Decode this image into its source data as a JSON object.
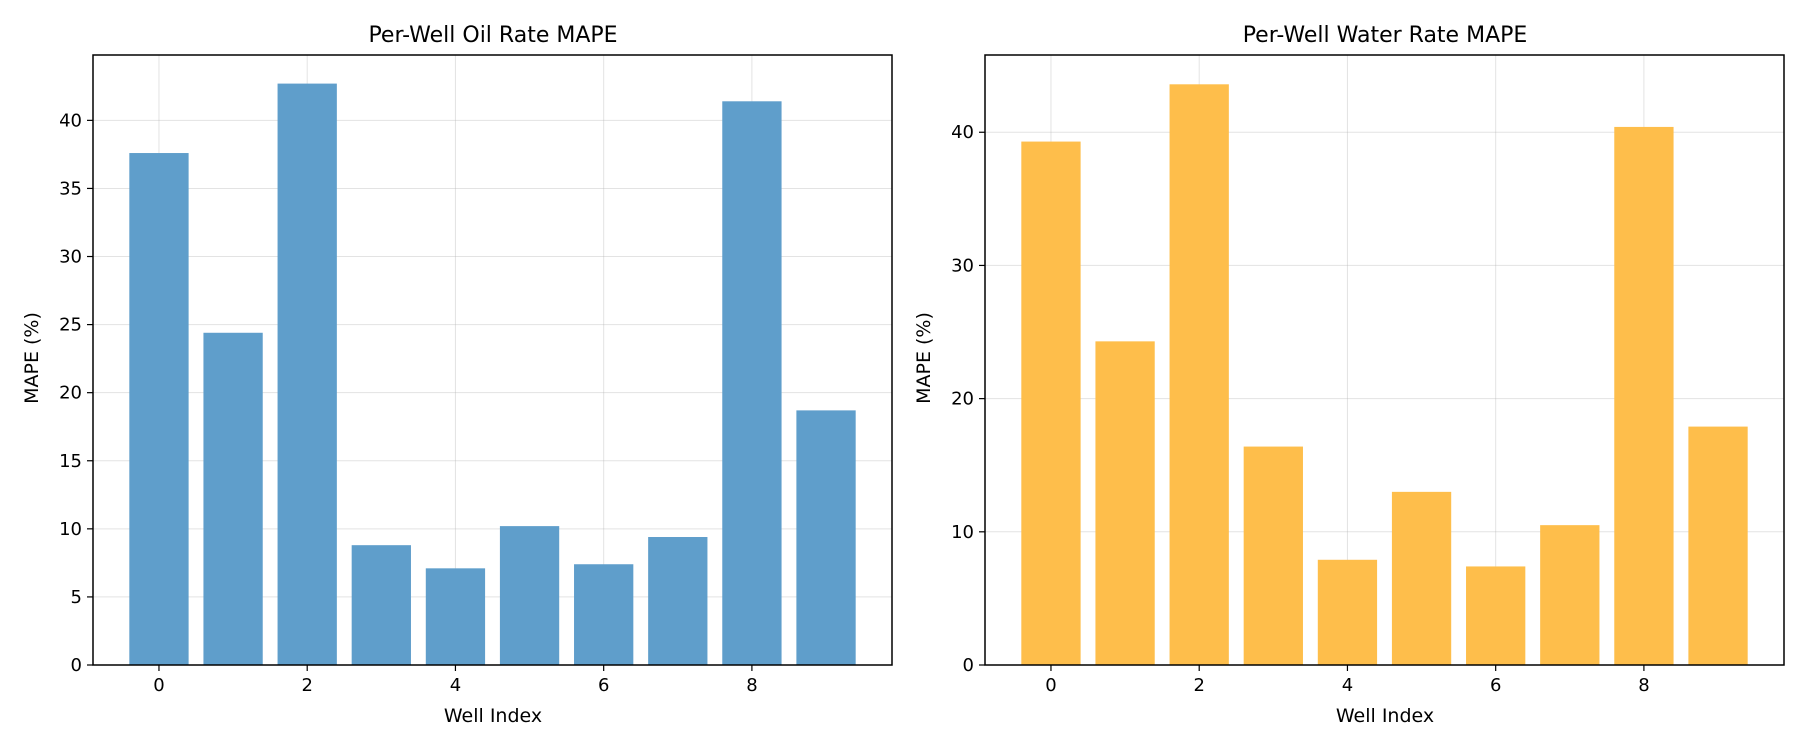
{
  "chart_data": [
    {
      "type": "bar",
      "title": "Per-Well Oil Rate MAPE",
      "xlabel": "Well Index",
      "ylabel": "MAPE (%)",
      "x": [
        0,
        1,
        2,
        3,
        4,
        5,
        6,
        7,
        8,
        9
      ],
      "values": [
        37.6,
        24.4,
        42.7,
        8.8,
        7.1,
        10.2,
        7.4,
        9.4,
        41.4,
        18.7
      ],
      "color": "#5f9ecb",
      "xlim": [
        -0.89,
        9.89
      ],
      "ylim": [
        0,
        44.8
      ],
      "xticks": [
        "0",
        "2",
        "4",
        "6",
        "8"
      ],
      "yticks": [
        "0",
        "5",
        "10",
        "15",
        "20",
        "25",
        "30",
        "35",
        "40"
      ],
      "grid": true
    },
    {
      "type": "bar",
      "title": "Per-Well Water Rate MAPE",
      "xlabel": "Well Index",
      "ylabel": "MAPE (%)",
      "x": [
        0,
        1,
        2,
        3,
        4,
        5,
        6,
        7,
        8,
        9
      ],
      "values": [
        39.3,
        24.3,
        43.6,
        16.4,
        7.9,
        13.0,
        7.4,
        10.5,
        40.4,
        17.9
      ],
      "color": "#febe4b",
      "xlim": [
        -0.89,
        9.89
      ],
      "ylim": [
        0,
        45.8
      ],
      "xticks": [
        "0",
        "2",
        "4",
        "6",
        "8"
      ],
      "yticks": [
        "0",
        "10",
        "20",
        "30",
        "40"
      ],
      "grid": true
    }
  ]
}
